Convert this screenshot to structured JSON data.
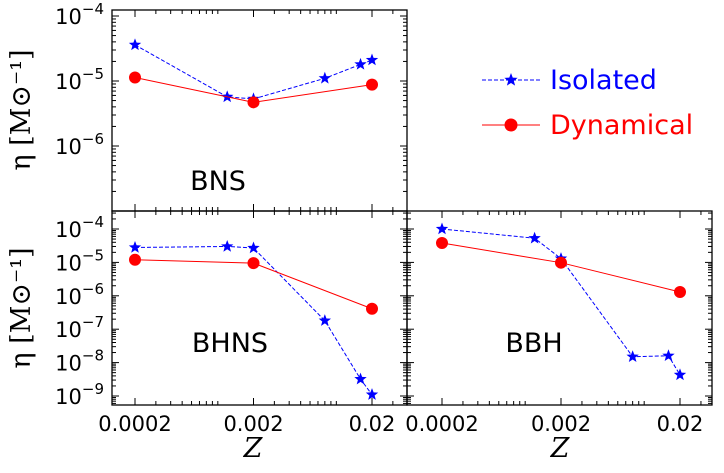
{
  "chart_data": {
    "type": "line",
    "xscale": "log",
    "yscale": "log",
    "xlabel": "Z",
    "ylabel": "η [M⊙⁻¹]",
    "x_ticks": [
      "0.0002",
      "0.002",
      "0.02"
    ],
    "legend": {
      "placement": "right",
      "entries": [
        {
          "label": "Isolated",
          "color": "#0000ff",
          "marker": "star",
          "linestyle": "dashed"
        },
        {
          "label": "Dynamical",
          "color": "#ff0000",
          "marker": "circle",
          "linestyle": "solid"
        }
      ]
    },
    "panels": [
      {
        "label": "BNS",
        "xlim": [
          0.00011,
          0.027
        ],
        "ylim_exp": [
          -6.8,
          -4
        ],
        "y_ticks": [
          {
            "exp": -4,
            "text": "10",
            "sup": "−4"
          },
          {
            "exp": -5,
            "text": "10",
            "sup": "−5"
          },
          {
            "exp": -6,
            "text": "10",
            "sup": "−6"
          }
        ],
        "series": [
          {
            "name": "Isolated",
            "x": [
              0.0002,
              0.0012,
              0.002,
              0.008,
              0.016,
              0.02
            ],
            "y": [
              3.6e-05,
              5.7e-06,
              5.3e-06,
              1.1e-05,
              1.8e-05,
              2.1e-05
            ]
          },
          {
            "name": "Dynamical",
            "x": [
              0.0002,
              0.002,
              0.02
            ],
            "y": [
              1.13e-05,
              4.7e-06,
              8.8e-06
            ]
          }
        ]
      },
      {
        "label": "BHNS",
        "xlim": [
          0.00011,
          0.027
        ],
        "ylim_exp": [
          -9.3,
          -3.7
        ],
        "y_ticks": [
          {
            "exp": -4,
            "text": "10",
            "sup": "−4"
          },
          {
            "exp": -5,
            "text": "10",
            "sup": "−5"
          },
          {
            "exp": -6,
            "text": "10",
            "sup": "−6"
          },
          {
            "exp": -7,
            "text": "10",
            "sup": "−7"
          },
          {
            "exp": -8,
            "text": "10",
            "sup": "−8"
          },
          {
            "exp": -9,
            "text": "10",
            "sup": "−9"
          }
        ],
        "series": [
          {
            "name": "Isolated",
            "x": [
              0.0002,
              0.0012,
              0.002,
              0.008,
              0.016,
              0.02
            ],
            "y": [
              2.8e-05,
              3e-05,
              2.7e-05,
              1.8e-07,
              3.2e-09,
              1.1e-09
            ]
          },
          {
            "name": "Dynamical",
            "x": [
              0.0002,
              0.002,
              0.02
            ],
            "y": [
              1.2e-05,
              9.5e-06,
              4.1e-07
            ]
          }
        ]
      },
      {
        "label": "BBH",
        "xlim": [
          0.00011,
          0.027
        ],
        "ylim_exp": [
          -9.3,
          -3.7
        ],
        "y_ticks": [],
        "series": [
          {
            "name": "Isolated",
            "x": [
              0.0002,
              0.0012,
              0.002,
              0.008,
              0.016,
              0.02
            ],
            "y": [
              0.0001,
              5.3e-05,
              1.3e-05,
              1.5e-08,
              1.6e-08,
              4.3e-09
            ]
          },
          {
            "name": "Dynamical",
            "x": [
              0.0002,
              0.002,
              0.02
            ],
            "y": [
              3.8e-05,
              9.8e-06,
              1.3e-06
            ]
          }
        ]
      }
    ]
  }
}
